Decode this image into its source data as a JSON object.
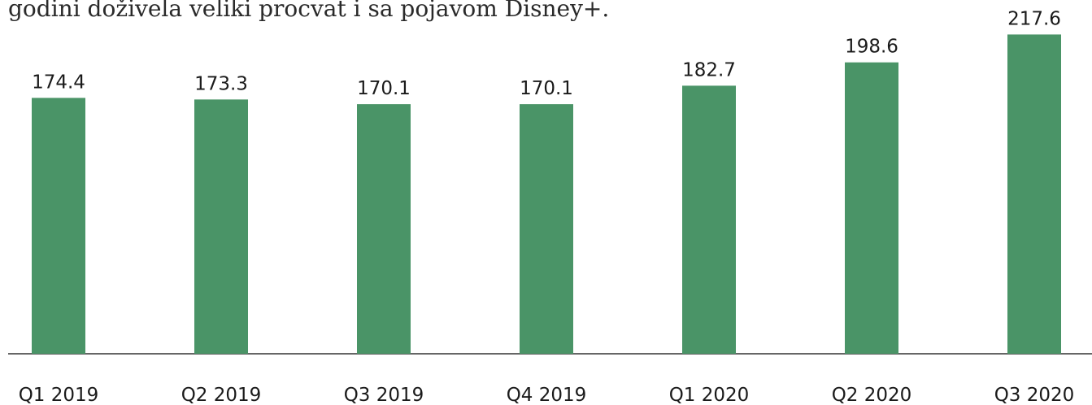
{
  "chart_data": {
    "type": "bar",
    "subtitle": "godini doživela veliki procvat i sa pojavom Disney+.",
    "categories": [
      "Q1 2019",
      "Q2 2019",
      "Q3 2019",
      "Q4 2019",
      "Q1 2020",
      "Q2 2020",
      "Q3 2020"
    ],
    "values": [
      174.4,
      173.3,
      170.1,
      170.1,
      182.7,
      198.6,
      217.6
    ],
    "color": "#4a9467",
    "ylim": [
      0,
      240
    ]
  }
}
